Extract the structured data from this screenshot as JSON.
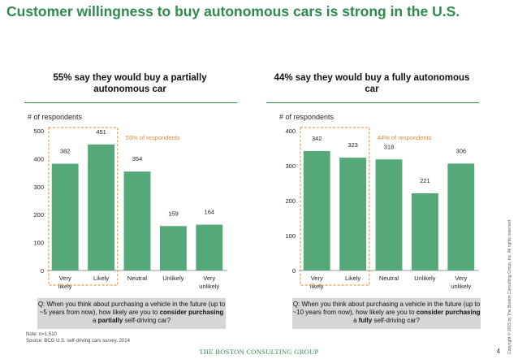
{
  "title": "Customer willingness to buy autonomous cars is strong in the U.S.",
  "panels": [
    {
      "subtitle": "55% say they would buy a partially autonomous car",
      "ylabel": "# of respondents",
      "annotation": "55% of respondents",
      "question_parts": [
        "Q: When you think about purchasing a vehicle in the future (up to ~5 years from now), how likely are you to ",
        "consider purchasing",
        " a ",
        "partially",
        " self-driving car?"
      ]
    },
    {
      "subtitle": "44% say they would buy a fully autonomous car",
      "ylabel": "# of respondents",
      "annotation": "44% of respondents",
      "question_parts": [
        "Q: When you think about purchasing a vehicle in the future (up to ~10 years from now), how likely are you to ",
        "consider purchasing",
        " a ",
        "fully",
        " self-driving car?"
      ]
    }
  ],
  "chart_data": [
    {
      "type": "bar",
      "categories": [
        "Very likely",
        "Likely",
        "Neutral",
        "Unlikely",
        "Very unlikely"
      ],
      "values": [
        382,
        451,
        354,
        159,
        164
      ],
      "ylabel": "# of respondents",
      "ylim": [
        0,
        500
      ],
      "yticks": [
        0,
        100,
        200,
        300,
        400,
        500
      ],
      "annotation_span": [
        "Very likely",
        "Likely"
      ],
      "bar_color": "#55a878",
      "grid": false
    },
    {
      "type": "bar",
      "categories": [
        "Very likely",
        "Likely",
        "Neutral",
        "Unlikely",
        "Very unlikely"
      ],
      "values": [
        342,
        323,
        318,
        221,
        306
      ],
      "ylabel": "# of respondents",
      "ylim": [
        0,
        400
      ],
      "yticks": [
        0,
        100,
        200,
        300,
        400
      ],
      "annotation_span": [
        "Very likely",
        "Likely"
      ],
      "bar_color": "#55a878",
      "grid": false
    }
  ],
  "copyright": "Copyright © 2015 by The Boston Consulting Group, Inc. All rights reserved.",
  "note": "Note: n=1,510",
  "source": "Source: BCG U.S. self-driving cars survey, 2014",
  "footer_logo": "THE BOSTON CONSULTING GROUP",
  "page_number": "4",
  "colors": {
    "accent": "#2d8a4e",
    "bar": "#55a878",
    "annotation": "#e08a2e",
    "question_bg": "#d6d6d6"
  }
}
